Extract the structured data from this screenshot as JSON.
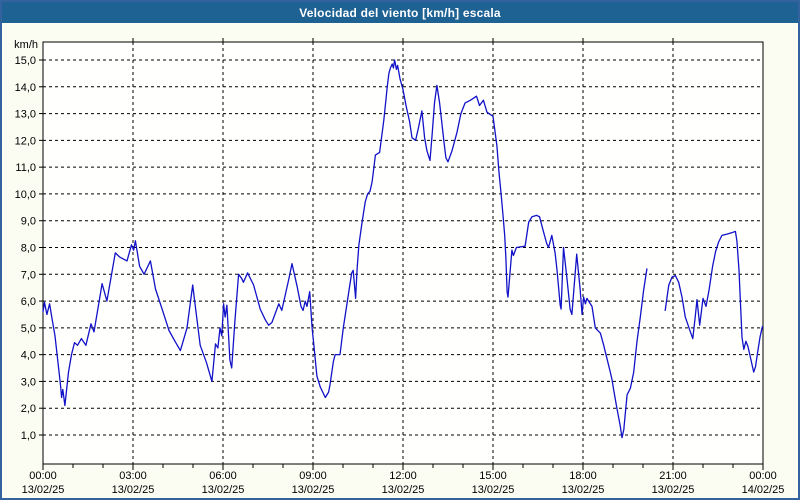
{
  "window": {
    "title": "Velocidad del viento [km/h] escala"
  },
  "colors": {
    "titlebar_bg": "#1e6294",
    "titlebar_text": "#ffffff",
    "window_border": "#33629e",
    "content_bg": "#fbfcf2",
    "plot_bg": "#fffffe",
    "plot_border": "#000000",
    "grid": "#000000",
    "series_line": "#1212c8",
    "label_text": "#000000"
  },
  "chart_data": {
    "type": "line",
    "title": "Velocidad del viento [km/h] escala",
    "unit_label": "km/h",
    "grid": {
      "style": "dashed",
      "horizontal": true,
      "vertical": true
    },
    "legend": "none",
    "x_axis": {
      "range_hours": [
        0,
        24
      ],
      "major_tick_interval_hours": 3,
      "minor_tick_interval_hours": 1,
      "ticks": [
        {
          "hour": 0,
          "time": "00:00",
          "date": "13/02/25"
        },
        {
          "hour": 3,
          "time": "03:00",
          "date": "13/02/25"
        },
        {
          "hour": 6,
          "time": "06:00",
          "date": "13/02/25"
        },
        {
          "hour": 9,
          "time": "09:00",
          "date": "13/02/25"
        },
        {
          "hour": 12,
          "time": "12:00",
          "date": "13/02/25"
        },
        {
          "hour": 15,
          "time": "15:00",
          "date": "13/02/25"
        },
        {
          "hour": 18,
          "time": "18:00",
          "date": "13/02/25"
        },
        {
          "hour": 21,
          "time": "21:00",
          "date": "13/02/25"
        },
        {
          "hour": 24,
          "time": "00:00",
          "date": "14/02/25"
        }
      ]
    },
    "y_axis": {
      "min": 0,
      "max": 15.7,
      "ticks": [
        {
          "value": 15,
          "label": "15,0"
        },
        {
          "value": 14,
          "label": "14,0"
        },
        {
          "value": 13,
          "label": "13,0"
        },
        {
          "value": 12,
          "label": "12,0"
        },
        {
          "value": 11,
          "label": "11,0"
        },
        {
          "value": 10,
          "label": "10,0"
        },
        {
          "value": 9,
          "label": "9,0"
        },
        {
          "value": 8,
          "label": "8,0"
        },
        {
          "value": 7,
          "label": "7,0"
        },
        {
          "value": 6,
          "label": "6,0"
        },
        {
          "value": 5,
          "label": "5,0"
        },
        {
          "value": 4,
          "label": "4,0"
        },
        {
          "value": 3,
          "label": "3,0"
        },
        {
          "value": 2,
          "label": "2,0"
        },
        {
          "value": 1,
          "label": "1,0"
        }
      ]
    },
    "series": [
      {
        "name": "wind-speed-kmh",
        "color": "#1212c8",
        "segments": [
          [
            [
              0.0,
              5.6
            ],
            [
              0.05,
              5.95
            ],
            [
              0.13,
              5.5
            ],
            [
              0.22,
              5.9
            ],
            [
              0.3,
              5.35
            ],
            [
              0.4,
              4.7
            ],
            [
              0.5,
              3.7
            ],
            [
              0.58,
              2.9
            ],
            [
              0.62,
              2.4
            ],
            [
              0.66,
              2.7
            ],
            [
              0.73,
              2.1
            ],
            [
              0.85,
              3.35
            ],
            [
              0.95,
              4.0
            ],
            [
              1.05,
              4.45
            ],
            [
              1.15,
              4.35
            ],
            [
              1.28,
              4.6
            ],
            [
              1.43,
              4.35
            ],
            [
              1.6,
              5.15
            ],
            [
              1.7,
              4.85
            ],
            [
              1.97,
              6.65
            ],
            [
              2.13,
              6.0
            ],
            [
              2.41,
              7.8
            ],
            [
              2.55,
              7.65
            ],
            [
              2.8,
              7.5
            ],
            [
              2.95,
              8.1
            ],
            [
              3.02,
              7.9
            ],
            [
              3.08,
              8.25
            ],
            [
              3.22,
              7.3
            ],
            [
              3.37,
              7.0
            ],
            [
              3.58,
              7.5
            ],
            [
              3.75,
              6.45
            ],
            [
              4.0,
              5.6
            ],
            [
              4.2,
              4.9
            ],
            [
              4.4,
              4.5
            ],
            [
              4.58,
              4.15
            ],
            [
              4.8,
              5.0
            ],
            [
              4.99,
              6.6
            ],
            [
              5.1,
              5.6
            ],
            [
              5.24,
              4.35
            ],
            [
              5.45,
              3.7
            ],
            [
              5.63,
              3.0
            ],
            [
              5.75,
              4.4
            ],
            [
              5.83,
              4.25
            ],
            [
              5.9,
              5.0
            ],
            [
              5.96,
              4.7
            ],
            [
              6.02,
              5.9
            ],
            [
              6.07,
              5.4
            ],
            [
              6.13,
              5.85
            ],
            [
              6.23,
              3.8
            ],
            [
              6.29,
              3.5
            ],
            [
              6.4,
              5.3
            ],
            [
              6.52,
              7.0
            ],
            [
              6.62,
              6.85
            ],
            [
              6.68,
              6.7
            ],
            [
              6.82,
              7.05
            ],
            [
              7.02,
              6.6
            ],
            [
              7.24,
              5.7
            ],
            [
              7.41,
              5.3
            ],
            [
              7.52,
              5.1
            ],
            [
              7.63,
              5.2
            ],
            [
              7.86,
              5.9
            ],
            [
              7.96,
              5.65
            ],
            [
              8.19,
              6.8
            ],
            [
              8.3,
              7.4
            ],
            [
              8.47,
              6.55
            ],
            [
              8.6,
              5.8
            ],
            [
              8.67,
              5.65
            ],
            [
              8.74,
              6.0
            ],
            [
              8.8,
              5.8
            ],
            [
              8.89,
              6.35
            ],
            [
              8.97,
              5.0
            ],
            [
              9.02,
              4.45
            ],
            [
              9.13,
              3.2
            ],
            [
              9.24,
              2.8
            ],
            [
              9.41,
              2.4
            ],
            [
              9.52,
              2.6
            ],
            [
              9.57,
              2.9
            ],
            [
              9.68,
              3.75
            ],
            [
              9.74,
              4.0
            ],
            [
              9.9,
              4.0
            ],
            [
              10.01,
              5.0
            ],
            [
              10.18,
              6.25
            ],
            [
              10.29,
              7.05
            ],
            [
              10.34,
              7.15
            ],
            [
              10.42,
              6.1
            ],
            [
              10.47,
              7.2
            ],
            [
              10.53,
              8.1
            ],
            [
              10.63,
              8.9
            ],
            [
              10.74,
              9.7
            ],
            [
              10.82,
              10.0
            ],
            [
              10.9,
              10.1
            ],
            [
              10.97,
              10.45
            ],
            [
              11.08,
              11.45
            ],
            [
              11.22,
              11.55
            ],
            [
              11.36,
              12.75
            ],
            [
              11.42,
              13.4
            ],
            [
              11.47,
              13.95
            ],
            [
              11.53,
              14.5
            ],
            [
              11.58,
              14.7
            ],
            [
              11.64,
              14.85
            ],
            [
              11.68,
              14.7
            ],
            [
              11.72,
              15.0
            ],
            [
              11.78,
              14.65
            ],
            [
              11.82,
              14.8
            ],
            [
              11.9,
              14.3
            ],
            [
              12.0,
              13.9
            ],
            [
              12.1,
              13.3
            ],
            [
              12.17,
              12.95
            ],
            [
              12.22,
              12.7
            ],
            [
              12.3,
              12.1
            ],
            [
              12.42,
              12.0
            ],
            [
              12.52,
              12.5
            ],
            [
              12.63,
              13.1
            ],
            [
              12.72,
              12.1
            ],
            [
              12.8,
              11.6
            ],
            [
              12.9,
              11.25
            ],
            [
              12.97,
              12.2
            ],
            [
              13.05,
              13.4
            ],
            [
              13.13,
              14.05
            ],
            [
              13.22,
              13.4
            ],
            [
              13.3,
              12.6
            ],
            [
              13.37,
              11.9
            ],
            [
              13.43,
              11.35
            ],
            [
              13.5,
              11.2
            ],
            [
              13.63,
              11.6
            ],
            [
              13.8,
              12.3
            ],
            [
              13.93,
              13.0
            ],
            [
              14.07,
              13.4
            ],
            [
              14.25,
              13.5
            ],
            [
              14.45,
              13.65
            ],
            [
              14.55,
              13.3
            ],
            [
              14.68,
              13.5
            ],
            [
              14.8,
              13.05
            ],
            [
              15.0,
              12.9
            ],
            [
              15.13,
              11.8
            ],
            [
              15.2,
              10.8
            ],
            [
              15.27,
              10.0
            ],
            [
              15.33,
              9.25
            ],
            [
              15.39,
              8.45
            ],
            [
              15.43,
              7.6
            ],
            [
              15.47,
              6.35
            ],
            [
              15.5,
              6.15
            ],
            [
              15.63,
              7.9
            ],
            [
              15.68,
              7.7
            ],
            [
              15.78,
              8.0
            ],
            [
              16.07,
              8.05
            ],
            [
              16.19,
              8.95
            ],
            [
              16.3,
              9.15
            ],
            [
              16.45,
              9.2
            ],
            [
              16.55,
              9.15
            ],
            [
              16.68,
              8.6
            ],
            [
              16.79,
              8.15
            ],
            [
              16.85,
              8.0
            ],
            [
              16.96,
              8.45
            ],
            [
              17.07,
              7.8
            ],
            [
              17.13,
              7.2
            ],
            [
              17.24,
              5.85
            ],
            [
              17.27,
              5.7
            ],
            [
              17.35,
              8.0
            ],
            [
              17.46,
              6.9
            ],
            [
              17.57,
              5.7
            ],
            [
              17.63,
              5.5
            ],
            [
              17.79,
              7.75
            ],
            [
              17.9,
              6.5
            ],
            [
              17.97,
              5.5
            ],
            [
              18.02,
              6.15
            ],
            [
              18.08,
              5.9
            ],
            [
              18.13,
              6.1
            ],
            [
              18.3,
              5.8
            ],
            [
              18.41,
              5.0
            ],
            [
              18.58,
              4.8
            ],
            [
              18.69,
              4.35
            ],
            [
              18.8,
              3.85
            ],
            [
              18.91,
              3.35
            ],
            [
              18.97,
              3.05
            ],
            [
              19.02,
              2.7
            ],
            [
              19.13,
              2.0
            ],
            [
              19.24,
              1.35
            ],
            [
              19.3,
              0.9
            ],
            [
              19.36,
              1.2
            ],
            [
              19.41,
              1.8
            ],
            [
              19.47,
              2.5
            ],
            [
              19.58,
              2.75
            ],
            [
              19.69,
              3.35
            ],
            [
              19.8,
              4.5
            ],
            [
              19.91,
              5.4
            ],
            [
              20.02,
              6.4
            ],
            [
              20.13,
              7.2
            ]
          ],
          [
            [
              20.74,
              5.65
            ],
            [
              20.86,
              6.6
            ],
            [
              20.97,
              6.9
            ],
            [
              21.08,
              6.95
            ],
            [
              21.19,
              6.7
            ],
            [
              21.3,
              6.15
            ],
            [
              21.41,
              5.4
            ],
            [
              21.58,
              4.85
            ],
            [
              21.66,
              4.6
            ],
            [
              21.74,
              5.4
            ],
            [
              21.8,
              6.05
            ],
            [
              21.89,
              5.1
            ],
            [
              22.0,
              6.1
            ],
            [
              22.1,
              5.8
            ],
            [
              22.2,
              6.4
            ],
            [
              22.32,
              7.3
            ],
            [
              22.42,
              7.85
            ],
            [
              22.52,
              8.2
            ],
            [
              22.63,
              8.45
            ],
            [
              22.8,
              8.5
            ],
            [
              22.95,
              8.55
            ],
            [
              23.08,
              8.6
            ],
            [
              23.13,
              8.25
            ],
            [
              23.2,
              7.15
            ],
            [
              23.25,
              5.9
            ],
            [
              23.3,
              4.65
            ],
            [
              23.36,
              4.2
            ],
            [
              23.43,
              4.5
            ],
            [
              23.5,
              4.3
            ],
            [
              23.6,
              3.8
            ],
            [
              23.69,
              3.35
            ],
            [
              23.75,
              3.55
            ],
            [
              23.83,
              4.15
            ],
            [
              23.9,
              4.65
            ],
            [
              23.98,
              5.05
            ]
          ]
        ]
      }
    ]
  }
}
